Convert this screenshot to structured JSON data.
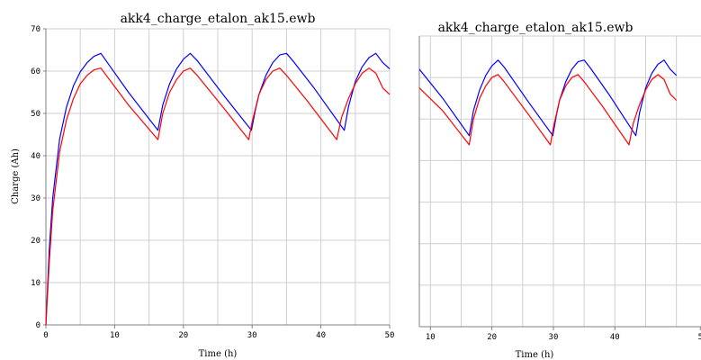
{
  "chart_data": [
    {
      "type": "line",
      "title": "akk4_charge_etalon_ak15.ewb",
      "xlabel": "Time (h)",
      "ylabel": "Charge (Ah)",
      "xlim": [
        0,
        50
      ],
      "ylim": [
        0,
        70
      ],
      "x_ticks": [
        "0",
        "10",
        "20",
        "30",
        "40",
        "50"
      ],
      "y_ticks": [
        "0",
        "10",
        "20",
        "30",
        "40",
        "50",
        "60",
        "70"
      ],
      "grid": true,
      "series": [
        {
          "color": "#0000ff",
          "x": [
            0,
            0.5,
            1,
            2,
            3,
            4,
            5,
            6,
            7,
            8,
            12,
            16.3,
            17,
            18,
            19,
            20,
            21,
            22,
            26,
            29.9,
            30.5,
            31,
            32,
            33,
            34,
            35,
            36,
            39,
            43.4,
            44,
            45,
            46,
            47,
            48,
            49,
            50
          ],
          "y": [
            0,
            18,
            30,
            44,
            51.5,
            56.5,
            59.8,
            62,
            63.5,
            64.2,
            55,
            46,
            52,
            57,
            60.5,
            62.8,
            64.2,
            62.5,
            54,
            46,
            51,
            54.5,
            59,
            62,
            63.8,
            64.2,
            62.3,
            56,
            46,
            51.5,
            57.5,
            61,
            63.2,
            64.2,
            62,
            60.5
          ]
        },
        {
          "color": "#ff0000",
          "x": [
            0,
            0.5,
            1,
            2,
            3,
            4,
            5,
            6,
            7,
            8,
            12,
            16.3,
            17,
            18,
            19,
            20,
            21,
            22,
            26,
            29.5,
            30,
            31,
            32,
            33,
            34,
            35,
            38,
            42.3,
            43,
            44,
            45,
            46,
            47,
            48,
            49,
            50
          ],
          "y": [
            0,
            15,
            27,
            41,
            48.5,
            53.5,
            57,
            59,
            60.3,
            60.7,
            52,
            43.8,
            50,
            55,
            58,
            60,
            60.7,
            59,
            51,
            43.8,
            48,
            54.5,
            58,
            60,
            60.7,
            59,
            53,
            43.8,
            49,
            53.5,
            57,
            59.5,
            60.7,
            59.5,
            56,
            54.5
          ]
        }
      ]
    },
    {
      "type": "line",
      "title": "akk4_charge_etalon_ak15.ewb",
      "xlabel": "Time (h)",
      "xlim": [
        8.2,
        54
      ],
      "ylim": [
        0,
        70
      ],
      "x_ticks": [
        "10",
        "20",
        "30",
        "40",
        "5"
      ],
      "grid": true,
      "series": [
        {
          "color": "#0000ff",
          "x": [
            8.2,
            12,
            16.3,
            17,
            18,
            19,
            20,
            21,
            22,
            26,
            29.9,
            30.5,
            31,
            32,
            33,
            34,
            35,
            36,
            39,
            43.4,
            44,
            45,
            46,
            47,
            48,
            49,
            50
          ],
          "y": [
            62,
            55,
            46,
            52,
            57,
            60.5,
            62.8,
            64.2,
            62.5,
            54,
            46,
            51,
            54.5,
            59,
            62,
            63.8,
            64.2,
            62.3,
            56,
            46,
            51.5,
            57.5,
            61,
            63.2,
            64.2,
            62,
            60.5
          ]
        },
        {
          "color": "#ff0000",
          "x": [
            8.2,
            12,
            16.3,
            17,
            18,
            19,
            20,
            21,
            22,
            26,
            29.5,
            30,
            31,
            32,
            33,
            34,
            35,
            38,
            42.3,
            43,
            44,
            45,
            46,
            47,
            48,
            49,
            50
          ],
          "y": [
            57.5,
            52,
            43.8,
            50,
            55,
            58,
            60,
            60.7,
            59,
            51,
            43.8,
            48,
            54.5,
            58,
            60,
            60.7,
            59,
            53,
            43.8,
            49,
            53.5,
            57,
            59.5,
            60.7,
            59.5,
            56,
            54.5
          ]
        }
      ]
    }
  ]
}
